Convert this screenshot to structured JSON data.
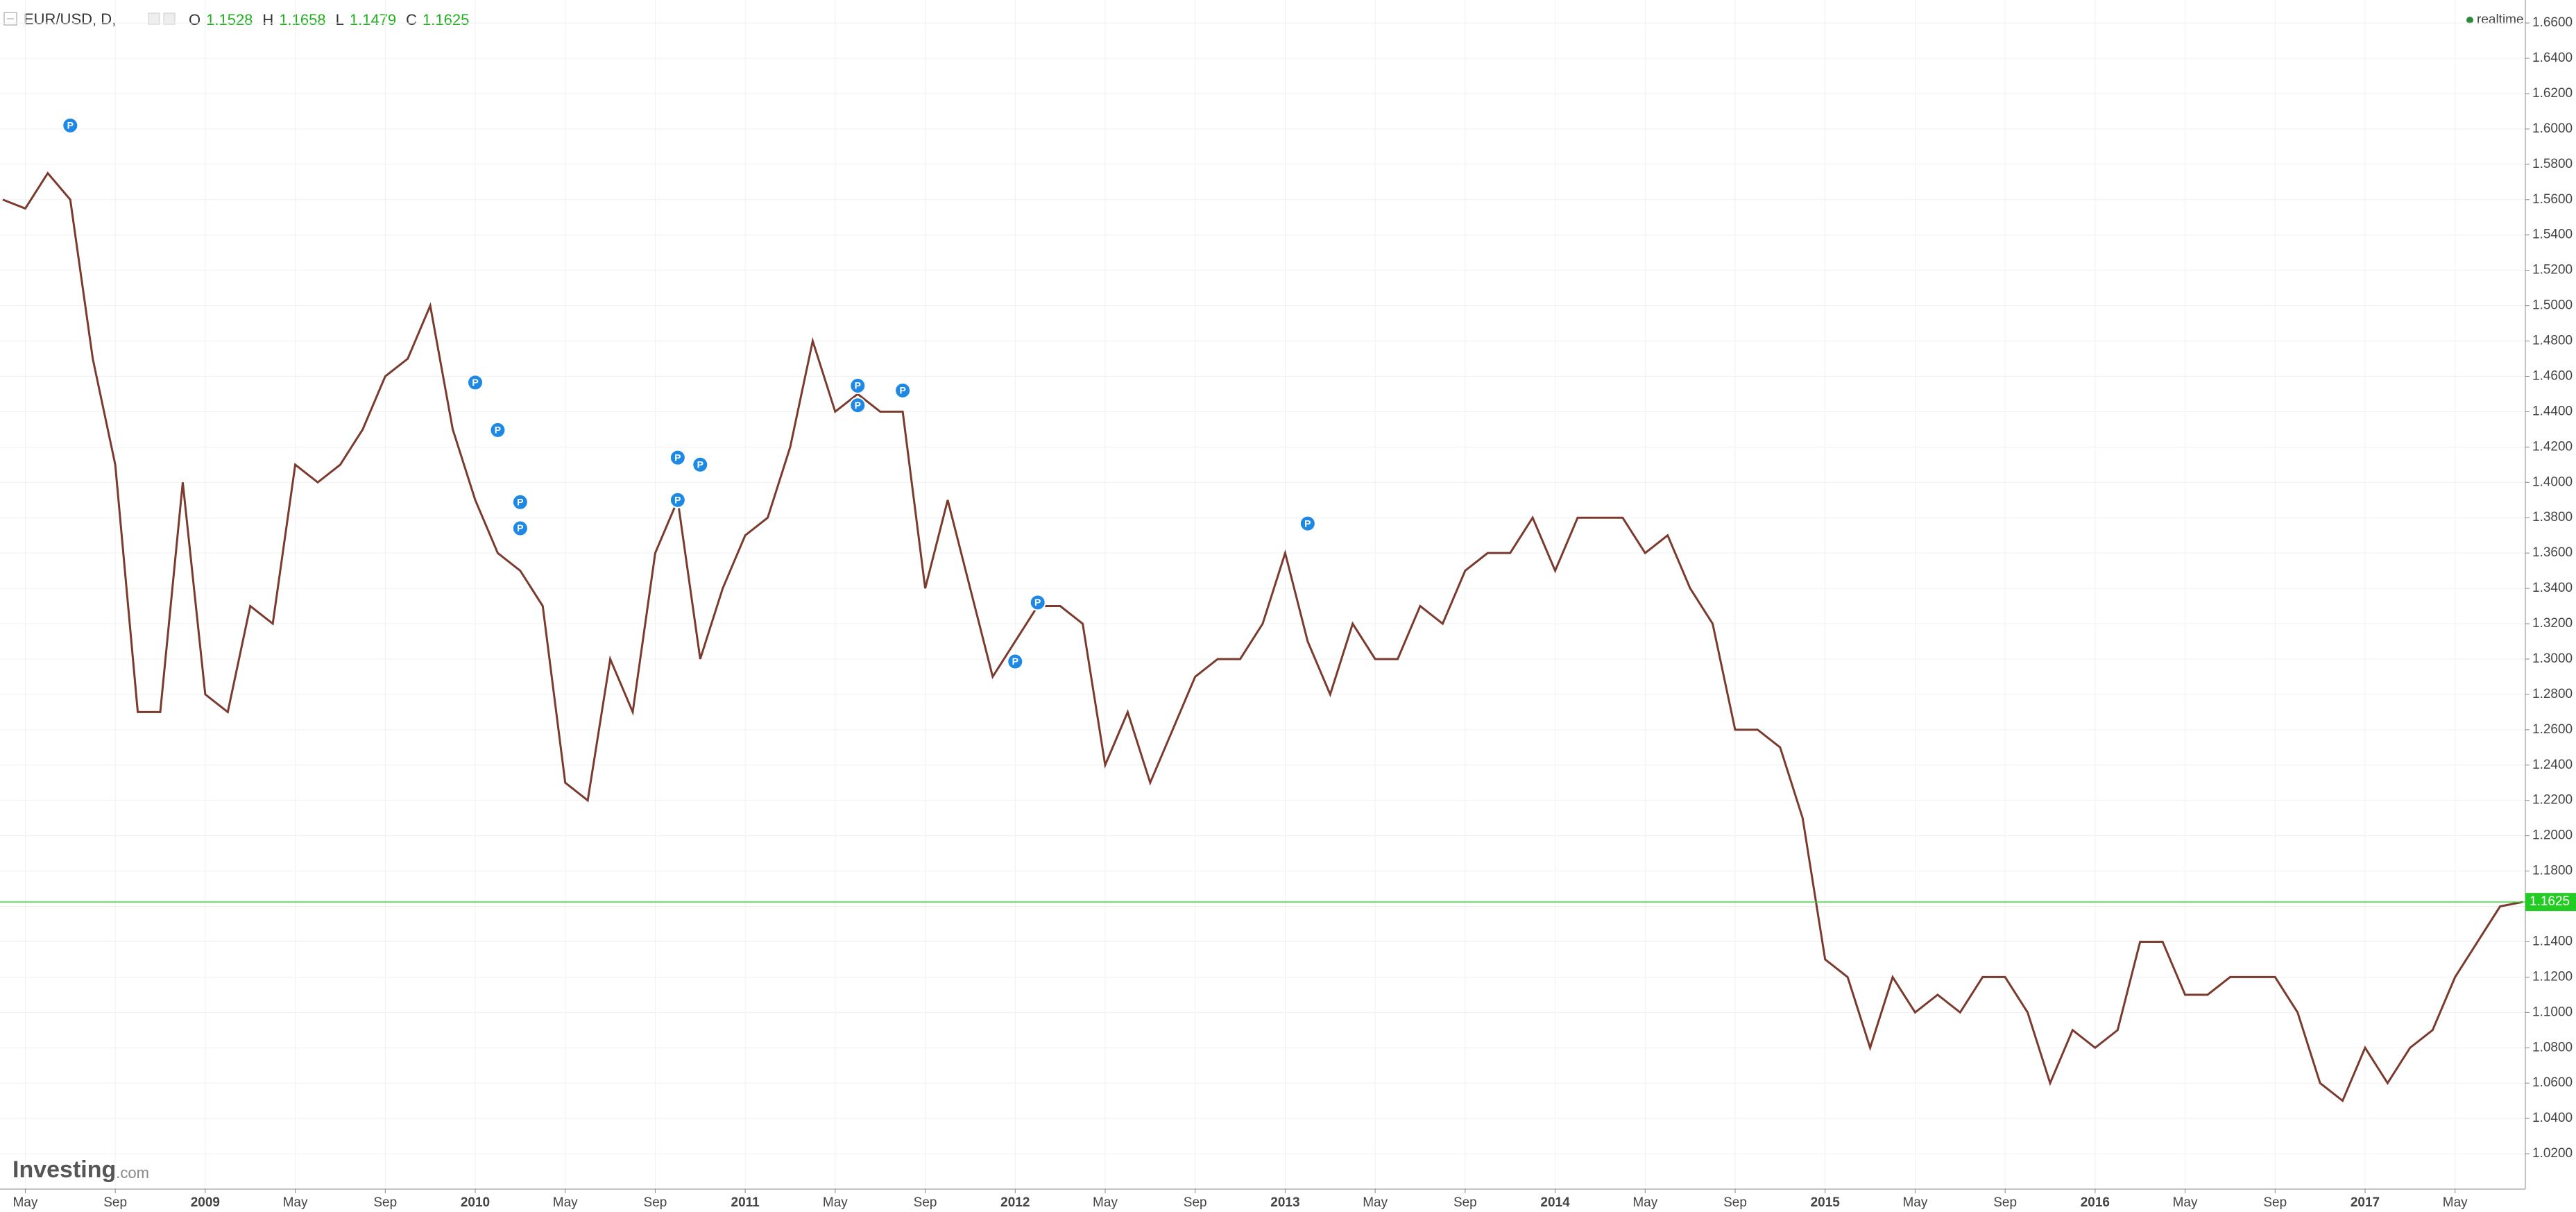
{
  "chart_data": {
    "type": "line",
    "symbol": "EUR/USD, D,",
    "ohlc_labels": [
      "O",
      "H",
      "L",
      "C"
    ],
    "ohlc": [
      "1.1528",
      "1.1658",
      "1.1479",
      "1.1625"
    ],
    "status": "realtime",
    "logo": "Investing",
    "logo_suffix": ".com",
    "color": "#7a3b2e",
    "x": [
      "2008-04",
      "2008-05",
      "2008-06",
      "2008-07",
      "2008-08",
      "2008-09",
      "2008-10",
      "2008-11",
      "2008-12",
      "2009-01",
      "2009-02",
      "2009-03",
      "2009-04",
      "2009-05",
      "2009-06",
      "2009-07",
      "2009-08",
      "2009-09",
      "2009-10",
      "2009-11",
      "2009-12",
      "2010-01",
      "2010-02",
      "2010-03",
      "2010-04",
      "2010-05",
      "2010-06",
      "2010-07",
      "2010-08",
      "2010-09",
      "2010-10",
      "2010-11",
      "2010-12",
      "2011-01",
      "2011-02",
      "2011-03",
      "2011-04",
      "2011-05",
      "2011-06",
      "2011-07",
      "2011-08",
      "2011-09",
      "2011-10",
      "2011-11",
      "2011-12",
      "2012-01",
      "2012-02",
      "2012-03",
      "2012-04",
      "2012-05",
      "2012-06",
      "2012-07",
      "2012-08",
      "2012-09",
      "2012-10",
      "2012-11",
      "2012-12",
      "2013-01",
      "2013-02",
      "2013-03",
      "2013-04",
      "2013-05",
      "2013-06",
      "2013-07",
      "2013-08",
      "2013-09",
      "2013-10",
      "2013-11",
      "2013-12",
      "2014-01",
      "2014-02",
      "2014-03",
      "2014-04",
      "2014-05",
      "2014-06",
      "2014-07",
      "2014-08",
      "2014-09",
      "2014-10",
      "2014-11",
      "2014-12",
      "2015-01",
      "2015-02",
      "2015-03",
      "2015-04",
      "2015-05",
      "2015-06",
      "2015-07",
      "2015-08",
      "2015-09",
      "2015-10",
      "2015-11",
      "2015-12",
      "2016-01",
      "2016-02",
      "2016-03",
      "2016-04",
      "2016-05",
      "2016-06",
      "2016-07",
      "2016-08",
      "2016-09",
      "2016-10",
      "2016-11",
      "2016-12",
      "2017-01",
      "2017-02",
      "2017-03",
      "2017-04",
      "2017-05",
      "2017-06",
      "2017-07",
      "2017-08"
    ],
    "values": [
      1.56,
      1.555,
      1.575,
      1.56,
      1.47,
      1.41,
      1.27,
      1.27,
      1.4,
      1.28,
      1.27,
      1.33,
      1.32,
      1.41,
      1.4,
      1.41,
      1.43,
      1.46,
      1.47,
      1.5,
      1.43,
      1.39,
      1.36,
      1.35,
      1.33,
      1.23,
      1.22,
      1.3,
      1.27,
      1.36,
      1.39,
      1.3,
      1.34,
      1.37,
      1.38,
      1.42,
      1.48,
      1.44,
      1.45,
      1.44,
      1.44,
      1.34,
      1.39,
      1.34,
      1.29,
      1.31,
      1.33,
      1.33,
      1.32,
      1.24,
      1.27,
      1.23,
      1.26,
      1.29,
      1.3,
      1.3,
      1.32,
      1.36,
      1.31,
      1.28,
      1.32,
      1.3,
      1.3,
      1.33,
      1.32,
      1.35,
      1.36,
      1.36,
      1.38,
      1.35,
      1.38,
      1.38,
      1.38,
      1.36,
      1.37,
      1.34,
      1.32,
      1.26,
      1.26,
      1.25,
      1.21,
      1.13,
      1.12,
      1.08,
      1.12,
      1.1,
      1.11,
      1.1,
      1.12,
      1.12,
      1.1,
      1.06,
      1.09,
      1.08,
      1.09,
      1.14,
      1.14,
      1.11,
      1.11,
      1.12,
      1.12,
      1.12,
      1.1,
      1.06,
      1.05,
      1.08,
      1.06,
      1.08,
      1.09,
      1.12,
      1.14,
      1.16,
      1.1625
    ],
    "last_price": {
      "value": 1.1625,
      "label": "1.1625"
    },
    "markers": [
      {
        "x": "2008-07",
        "y": 1.602,
        "label": "P"
      },
      {
        "x": "2010-01",
        "y": 1.4565,
        "label": "P"
      },
      {
        "x": "2010-02",
        "y": 1.4296,
        "label": "P"
      },
      {
        "x": "2010-03",
        "y": 1.3888,
        "label": "P"
      },
      {
        "x": "2010-03",
        "y": 1.374,
        "label": "P"
      },
      {
        "x": "2010-10",
        "y": 1.39,
        "label": "P"
      },
      {
        "x": "2010-10",
        "y": 1.414,
        "label": "P"
      },
      {
        "x": "2010-11",
        "y": 1.41,
        "label": "P"
      },
      {
        "x": "2011-06",
        "y": 1.4547,
        "label": "P"
      },
      {
        "x": "2011-06",
        "y": 1.4436,
        "label": "P"
      },
      {
        "x": "2011-08",
        "y": 1.452,
        "label": "P"
      },
      {
        "x": "2012-01",
        "y": 1.2986,
        "label": "P"
      },
      {
        "x": "2012-02",
        "y": 1.332,
        "label": "P"
      },
      {
        "x": "2013-02",
        "y": 1.3767,
        "label": "P"
      }
    ],
    "xlim": [
      "2008-04",
      "2017-08"
    ],
    "xticks": [
      {
        "value": "2008-05",
        "label": "May"
      },
      {
        "value": "2008-09",
        "label": "Sep"
      },
      {
        "value": "2009-01",
        "label": "2009"
      },
      {
        "value": "2009-05",
        "label": "May"
      },
      {
        "value": "2009-09",
        "label": "Sep"
      },
      {
        "value": "2010-01",
        "label": "2010"
      },
      {
        "value": "2010-05",
        "label": "May"
      },
      {
        "value": "2010-09",
        "label": "Sep"
      },
      {
        "value": "2011-01",
        "label": "2011"
      },
      {
        "value": "2011-05",
        "label": "May"
      },
      {
        "value": "2011-09",
        "label": "Sep"
      },
      {
        "value": "2012-01",
        "label": "2012"
      },
      {
        "value": "2012-05",
        "label": "May"
      },
      {
        "value": "2012-09",
        "label": "Sep"
      },
      {
        "value": "2013-01",
        "label": "2013"
      },
      {
        "value": "2013-05",
        "label": "May"
      },
      {
        "value": "2013-09",
        "label": "Sep"
      },
      {
        "value": "2014-01",
        "label": "2014"
      },
      {
        "value": "2014-05",
        "label": "May"
      },
      {
        "value": "2014-09",
        "label": "Sep"
      },
      {
        "value": "2015-01",
        "label": "2015"
      },
      {
        "value": "2015-05",
        "label": "May"
      },
      {
        "value": "2015-09",
        "label": "Sep"
      },
      {
        "value": "2016-01",
        "label": "2016"
      },
      {
        "value": "2016-05",
        "label": "May"
      },
      {
        "value": "2016-09",
        "label": "Sep"
      },
      {
        "value": "2017-01",
        "label": "2017"
      },
      {
        "value": "2017-05",
        "label": "May"
      }
    ],
    "ylim": [
      1.0,
      1.673
    ],
    "yticks": [
      {
        "value": 1.02,
        "label": "1.0200"
      },
      {
        "value": 1.04,
        "label": "1.0400"
      },
      {
        "value": 1.06,
        "label": "1.0600"
      },
      {
        "value": 1.08,
        "label": "1.0800"
      },
      {
        "value": 1.1,
        "label": "1.1000"
      },
      {
        "value": 1.12,
        "label": "1.1200"
      },
      {
        "value": 1.14,
        "label": "1.1400"
      },
      {
        "value": 1.16,
        "label": "1.1600"
      },
      {
        "value": 1.18,
        "label": "1.1800"
      },
      {
        "value": 1.2,
        "label": "1.2000"
      },
      {
        "value": 1.22,
        "label": "1.2200"
      },
      {
        "value": 1.24,
        "label": "1.2400"
      },
      {
        "value": 1.26,
        "label": "1.2600"
      },
      {
        "value": 1.28,
        "label": "1.2800"
      },
      {
        "value": 1.3,
        "label": "1.3000"
      },
      {
        "value": 1.32,
        "label": "1.3200"
      },
      {
        "value": 1.34,
        "label": "1.3400"
      },
      {
        "value": 1.36,
        "label": "1.3600"
      },
      {
        "value": 1.38,
        "label": "1.3800"
      },
      {
        "value": 1.4,
        "label": "1.4000"
      },
      {
        "value": 1.42,
        "label": "1.4200"
      },
      {
        "value": 1.44,
        "label": "1.4400"
      },
      {
        "value": 1.46,
        "label": "1.4600"
      },
      {
        "value": 1.48,
        "label": "1.4800"
      },
      {
        "value": 1.5,
        "label": "1.5000"
      },
      {
        "value": 1.52,
        "label": "1.5200"
      },
      {
        "value": 1.54,
        "label": "1.5400"
      },
      {
        "value": 1.56,
        "label": "1.5600"
      },
      {
        "value": 1.58,
        "label": "1.5800"
      },
      {
        "value": 1.6,
        "label": "1.6000"
      },
      {
        "value": 1.62,
        "label": "1.6200"
      },
      {
        "value": 1.64,
        "label": "1.6400"
      },
      {
        "value": 1.66,
        "label": "1.6600"
      }
    ],
    "grid": true
  }
}
